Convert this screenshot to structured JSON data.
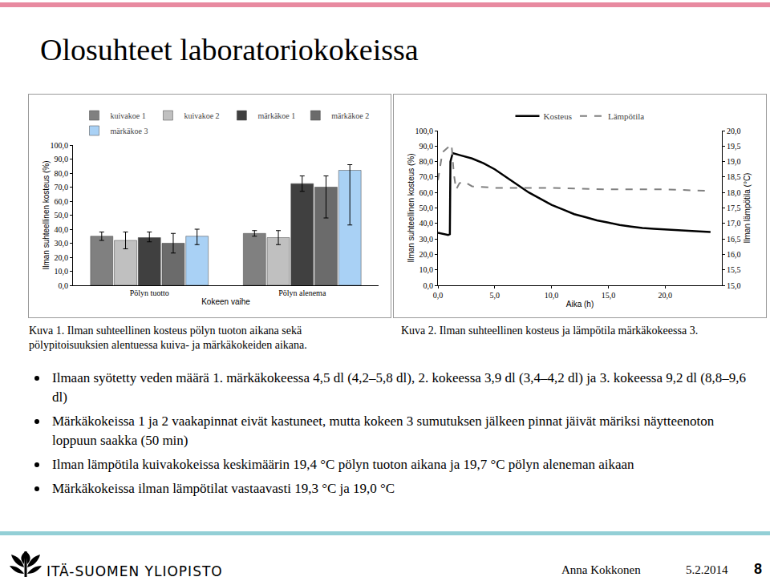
{
  "title": "Olosuhteet laboratoriokokeissa",
  "captions": [
    "Kuva 1. Ilman suhteellinen kosteus pölyn tuoton aikana sekä pölypitoisuuksien alentuessa kuiva- ja märkäkokeiden aikana.",
    "Kuva 2. Ilman suhteellinen kosteus ja lämpötila märkäkokeessa 3."
  ],
  "bullets": [
    "Ilmaan syötetty veden määrä 1. märkäkokeessa 4,5 dl (4,2–5,8 dl), 2. kokeessa 3,9 dl (3,4–4,2 dl) ja 3. kokeessa 9,2 dl (8,8–9,6 dl)",
    "Märkäkokeissa 1 ja 2 vaakapinnat eivät kastuneet, mutta kokeen 3 sumutuksen jälkeen pinnat jäivät märiksi näytteenoton loppuun saakka (50 min)",
    "Ilman lämpötila kuivakokeissa keskimäärin 19,4 °C pölyn tuoton aikana ja 19,7 °C pölyn aleneman aikaan",
    "Märkäkokeissa ilman lämpötilat vastaavasti 19,3 °C ja 19,0 °C"
  ],
  "footer": {
    "organization": "ITÄ-SUOMEN YLIOPISTO",
    "author": "Anna Kokkonen",
    "date": "5.2.2014",
    "page": "8"
  },
  "chart_data": [
    {
      "type": "bar",
      "x_label": "Kokeen vaihe",
      "y_label": "Ilman suhteellinen kosteus (%)",
      "categories": [
        "Pölyn tuotto",
        "Pölyn alenema"
      ],
      "ylim": [
        0,
        100
      ],
      "yticks": [
        {
          "value": 0,
          "label": "0,0"
        },
        {
          "value": 10,
          "label": "10,0"
        },
        {
          "value": 20,
          "label": "20,0"
        },
        {
          "value": 30,
          "label": "30,0"
        },
        {
          "value": 40,
          "label": "40,0"
        },
        {
          "value": 50,
          "label": "50,0"
        },
        {
          "value": 60,
          "label": "60,0"
        },
        {
          "value": 70,
          "label": "70,0"
        },
        {
          "value": 80,
          "label": "80,0"
        },
        {
          "value": 90,
          "label": "90,0"
        },
        {
          "value": 100,
          "label": "100,0"
        }
      ],
      "grid": false,
      "legend": "top",
      "series": [
        {
          "name": "kuivakoe 1",
          "color": "#808080",
          "values": [
            35,
            37
          ],
          "error_plus": [
            3,
            2
          ],
          "error_minus": [
            3,
            2
          ]
        },
        {
          "name": "kuivakoe 2",
          "color": "#c0c0c0",
          "values": [
            32,
            34
          ],
          "error_plus": [
            6,
            5
          ],
          "error_minus": [
            6,
            5
          ]
        },
        {
          "name": "märkäkoe 1",
          "color": "#404040",
          "values": [
            34,
            72.5
          ],
          "error_plus": [
            4,
            5.5
          ],
          "error_minus": [
            3,
            5.5
          ]
        },
        {
          "name": "märkäkoe 2",
          "color": "#6b6b6b",
          "values": [
            30,
            70
          ],
          "error_plus": [
            7,
            8
          ],
          "error_minus": [
            7,
            22
          ]
        },
        {
          "name": "märkäkoe 3",
          "color": "#a9d1f5",
          "values": [
            35,
            82
          ],
          "error_plus": [
            5,
            4
          ],
          "error_minus": [
            6,
            39
          ]
        }
      ]
    },
    {
      "type": "line",
      "x_label": "Aika (h)",
      "y_label": "Ilman suhteellinen kosteus (%)",
      "y2_label": "Ilman lämpötila (°C)",
      "xlim": [
        0,
        25
      ],
      "xticks": [
        {
          "value": 0,
          "label": "0,0"
        },
        {
          "value": 5,
          "label": "5,0"
        },
        {
          "value": 10,
          "label": "10,0"
        },
        {
          "value": 15,
          "label": "15,0"
        },
        {
          "value": 20,
          "label": "20,0"
        }
      ],
      "ylim": [
        0,
        100
      ],
      "yticks": [
        {
          "value": 0,
          "label": "0,0"
        },
        {
          "value": 10,
          "label": "10,0"
        },
        {
          "value": 20,
          "label": "20,0"
        },
        {
          "value": 30,
          "label": "30,0"
        },
        {
          "value": 40,
          "label": "40,0"
        },
        {
          "value": 50,
          "label": "50,0"
        },
        {
          "value": 60,
          "label": "60,0"
        },
        {
          "value": 70,
          "label": "70,0"
        },
        {
          "value": 80,
          "label": "80,0"
        },
        {
          "value": 90,
          "label": "90,0"
        },
        {
          "value": 100,
          "label": "100,0"
        }
      ],
      "y2lim": [
        15,
        20
      ],
      "y2ticks": [
        {
          "value": 15,
          "label": "15,0"
        },
        {
          "value": 15.5,
          "label": "15,5"
        },
        {
          "value": 16,
          "label": "16,0"
        },
        {
          "value": 16.5,
          "label": "16,5"
        },
        {
          "value": 17,
          "label": "17,0"
        },
        {
          "value": 17.5,
          "label": "17,5"
        },
        {
          "value": 18,
          "label": "18,0"
        },
        {
          "value": 18.5,
          "label": "18,5"
        },
        {
          "value": 19,
          "label": "19,0"
        },
        {
          "value": 19.5,
          "label": "19,5"
        },
        {
          "value": 20,
          "label": "20,0"
        }
      ],
      "grid": false,
      "legend": "top",
      "series": [
        {
          "name": "Kosteus",
          "color": "#000000",
          "line_style": "solid",
          "x": [
            0,
            0.3,
            0.6,
            0.9,
            1.05,
            1.1,
            1.3,
            1.5,
            2,
            3,
            4,
            5,
            6,
            7,
            8,
            9,
            10,
            11,
            12,
            13,
            14,
            15,
            16,
            17,
            18,
            19,
            20,
            21,
            22,
            23,
            24
          ],
          "values": [
            34,
            33.5,
            33,
            32.5,
            33,
            80,
            85.5,
            85,
            84,
            82,
            79,
            75,
            70,
            65,
            60,
            56,
            52,
            49,
            46,
            44,
            42,
            40.5,
            39,
            38,
            37,
            36.5,
            36,
            35.5,
            35,
            34.8,
            34.5
          ]
        },
        {
          "name": "Lämpötila",
          "color": "#808080",
          "line_style": "dash",
          "axis": "y2",
          "x": [
            0,
            0.2,
            0.4,
            0.7,
            1,
            1.2,
            1.4,
            1.6,
            1.9,
            2.3,
            3,
            5,
            10,
            15,
            20,
            24
          ],
          "values": [
            18.4,
            18.9,
            19.3,
            19.4,
            19.5,
            19.55,
            18.6,
            18.1,
            18.3,
            18.35,
            18.2,
            18.15,
            18.15,
            18.1,
            18.1,
            18.05
          ]
        }
      ]
    }
  ]
}
